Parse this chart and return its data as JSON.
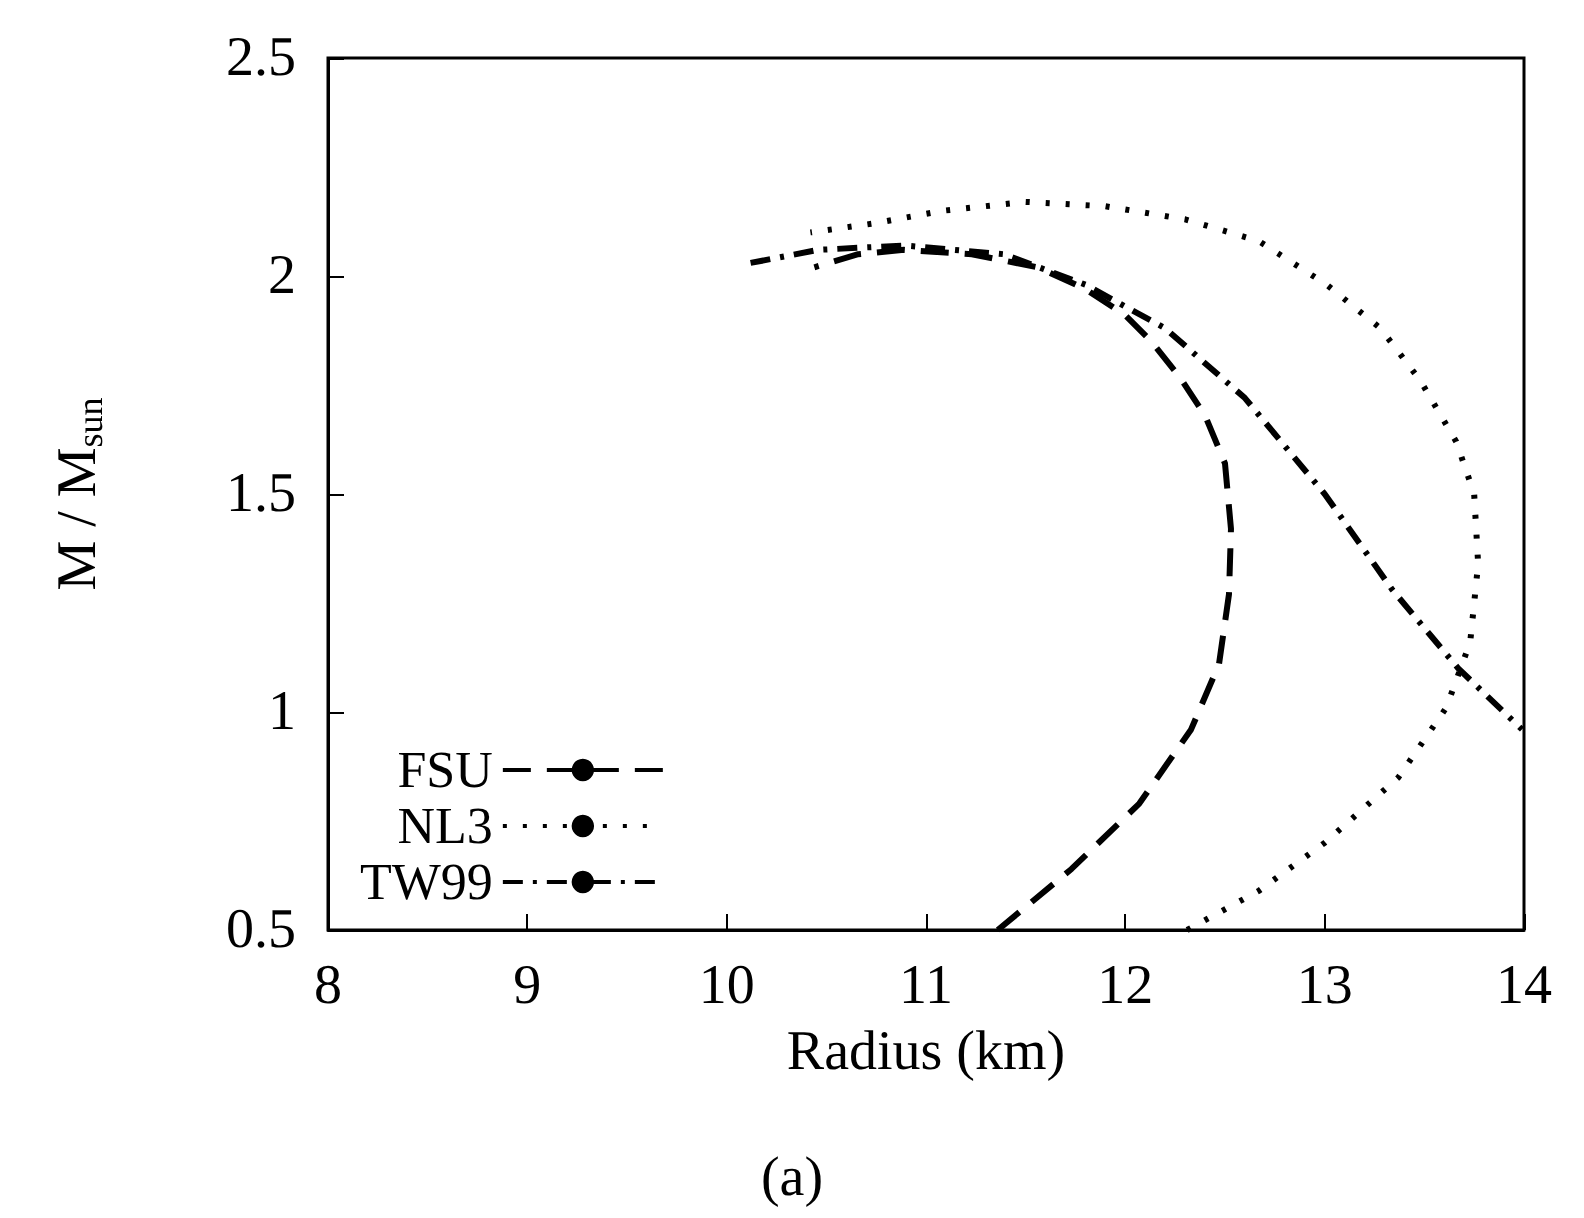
{
  "chart_data": {
    "type": "line",
    "xlabel": "Radius (km)",
    "ylabel": "M / M$_{sun}$",
    "annotations": [
      "(a)"
    ],
    "xlim": [
      8,
      14
    ],
    "xticks": [
      8,
      9,
      10,
      11,
      12,
      13,
      14
    ],
    "ylim": [
      0.5,
      2.5
    ],
    "yticks": [
      0.5,
      1,
      1.5,
      2,
      2.5
    ],
    "grid": false,
    "legend": "bottom left",
    "marker": "none",
    "series": [
      {
        "name": "FSU",
        "color": "#000000",
        "line_style": "dashed",
        "x": [
          11.36,
          11.73,
          12.07,
          12.33,
          12.47,
          12.52,
          12.53,
          12.5,
          12.4,
          12.27,
          12.13,
          12.0,
          11.8,
          11.56,
          11.23,
          10.89,
          10.66,
          10.44
        ],
        "values": [
          0.5,
          0.64,
          0.79,
          0.96,
          1.11,
          1.27,
          1.42,
          1.57,
          1.68,
          1.77,
          1.85,
          1.91,
          1.97,
          2.02,
          2.05,
          2.06,
          2.05,
          2.02
        ]
      },
      {
        "name": "NL3",
        "color": "#000000",
        "line_style": "dotted",
        "x": [
          12.31,
          12.67,
          13.0,
          13.37,
          13.61,
          13.73,
          13.77,
          13.75,
          13.66,
          13.48,
          13.28,
          13.01,
          12.67,
          12.3,
          11.9,
          11.5,
          11.09,
          10.73,
          10.42
        ],
        "values": [
          0.5,
          0.59,
          0.7,
          0.85,
          1.01,
          1.16,
          1.34,
          1.5,
          1.62,
          1.76,
          1.88,
          1.98,
          2.08,
          2.13,
          2.16,
          2.17,
          2.15,
          2.12,
          2.1
        ]
      },
      {
        "name": "TW99",
        "color": "#000000",
        "line_style": "dashdot",
        "x": [
          10.12,
          10.46,
          10.89,
          11.39,
          11.8,
          12.2,
          12.6,
          13.0,
          13.34,
          13.67,
          13.99
        ],
        "values": [
          2.03,
          2.06,
          2.07,
          2.05,
          1.98,
          1.88,
          1.72,
          1.5,
          1.28,
          1.1,
          0.96
        ]
      }
    ]
  }
}
